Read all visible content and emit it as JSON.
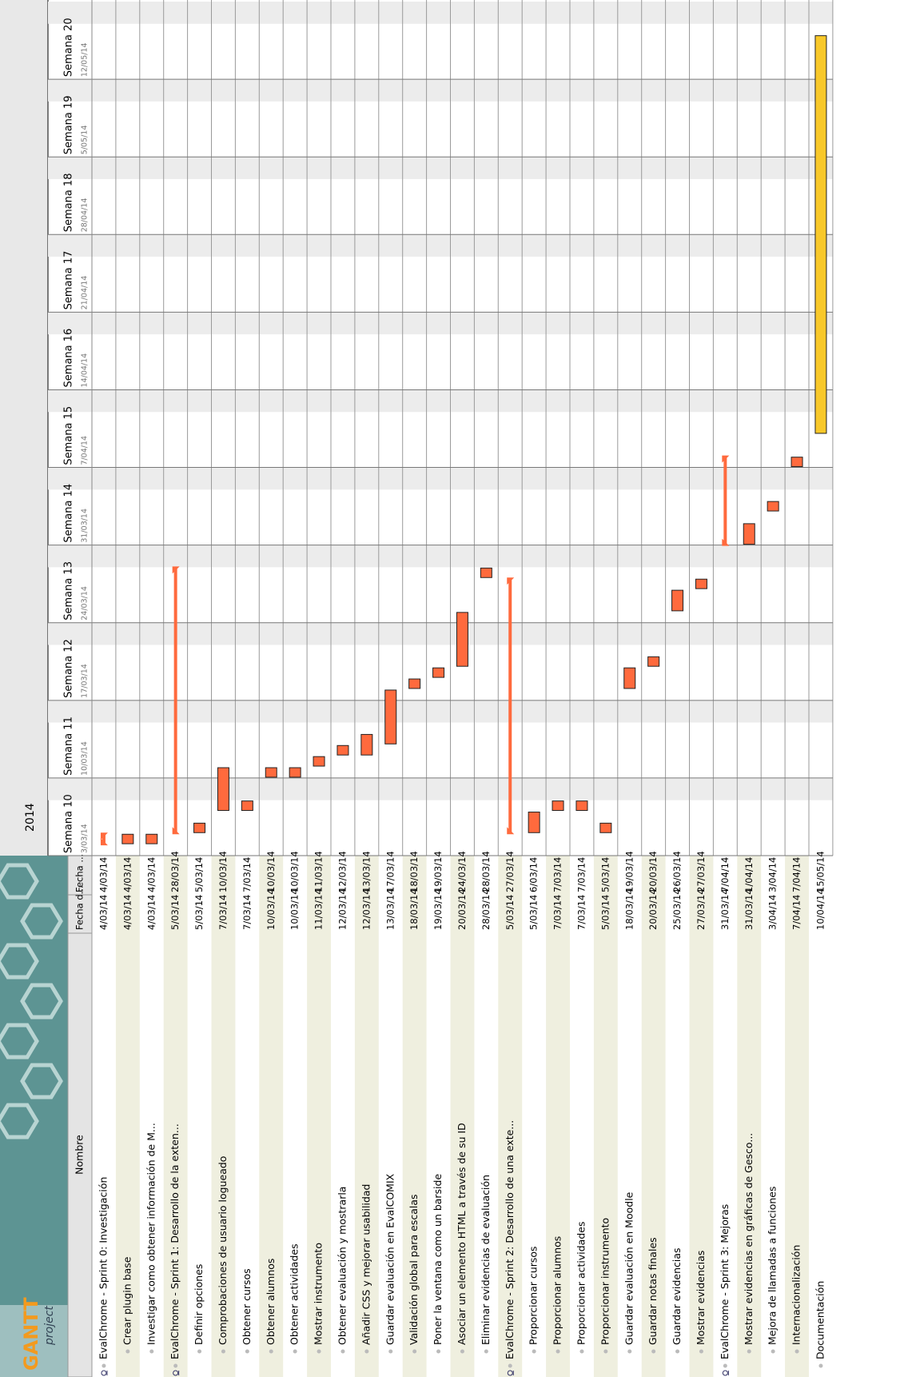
{
  "logo": {
    "title": "GANTT",
    "subtitle": "project"
  },
  "year": "2014",
  "columns": [
    "Nombre",
    "Fecha d...",
    "Fecha ..."
  ],
  "weeks": [
    {
      "name": "Semana 10",
      "date": "3/03/14"
    },
    {
      "name": "Semana 11",
      "date": "10/03/14"
    },
    {
      "name": "Semana 12",
      "date": "17/03/14"
    },
    {
      "name": "Semana 13",
      "date": "24/03/14"
    },
    {
      "name": "Semana 14",
      "date": "31/03/14"
    },
    {
      "name": "Semana 15",
      "date": "7/04/14"
    },
    {
      "name": "Semana 16",
      "date": "14/04/14"
    },
    {
      "name": "Semana 17",
      "date": "21/04/14"
    },
    {
      "name": "Semana 18",
      "date": "28/04/14"
    },
    {
      "name": "Semana 19",
      "date": "5/05/14"
    },
    {
      "name": "Semana 20",
      "date": "12/05/14"
    }
  ],
  "tasks": [
    {
      "name": "EvalChrome - Sprint 0: Investigación",
      "start": "4/03/14",
      "end": "4/03/14",
      "children": [
        {
          "name": "Crear plugin base",
          "start": "4/03/14",
          "end": "4/03/14"
        },
        {
          "name": "Investigar como obtener información de M...",
          "start": "4/03/14",
          "end": "4/03/14"
        }
      ]
    },
    {
      "name": "EvalChrome - Sprint 1: Desarrollo de la exten...",
      "start": "5/03/14",
      "end": "28/03/14",
      "children": [
        {
          "name": "Definir opciones",
          "start": "5/03/14",
          "end": "5/03/14"
        },
        {
          "name": "Comprobaciones de usuario logueado",
          "start": "7/03/14",
          "end": "10/03/14"
        },
        {
          "name": "Obtener cursos",
          "start": "7/03/14",
          "end": "7/03/14"
        },
        {
          "name": "Obtener alumnos",
          "start": "10/03/14",
          "end": "10/03/14"
        },
        {
          "name": "Obtener actividades",
          "start": "10/03/14",
          "end": "10/03/14"
        },
        {
          "name": "Mostrar instrumento",
          "start": "11/03/14",
          "end": "11/03/14"
        },
        {
          "name": "Obtener evaluación y mostrarla",
          "start": "12/03/14",
          "end": "12/03/14"
        },
        {
          "name": "Añadir CSS y mejorar usabilidad",
          "start": "12/03/14",
          "end": "13/03/14"
        },
        {
          "name": "Guardar evaluación en EvalCOMIX",
          "start": "13/03/14",
          "end": "17/03/14"
        },
        {
          "name": "Validación global para escalas",
          "start": "18/03/14",
          "end": "18/03/14"
        },
        {
          "name": "Poner la ventana como un barside",
          "start": "19/03/14",
          "end": "19/03/14"
        },
        {
          "name": "Asociar un elemento HTML a través de su ID",
          "start": "20/03/14",
          "end": "24/03/14"
        },
        {
          "name": "Eliminar evidencias de evaluación",
          "start": "28/03/14",
          "end": "28/03/14"
        }
      ]
    },
    {
      "name": "EvalChrome - Sprint 2: Desarrollo de una exte...",
      "start": "5/03/14",
      "end": "27/03/14",
      "children": [
        {
          "name": "Proporcionar cursos",
          "start": "5/03/14",
          "end": "6/03/14"
        },
        {
          "name": "Proporcionar alumnos",
          "start": "7/03/14",
          "end": "7/03/14"
        },
        {
          "name": "Proporcionar actividades",
          "start": "7/03/14",
          "end": "7/03/14"
        },
        {
          "name": "Proporcionar instrumento",
          "start": "5/03/14",
          "end": "5/03/14"
        },
        {
          "name": "Guardar evaluación en Moodle",
          "start": "18/03/14",
          "end": "19/03/14"
        },
        {
          "name": "Guardar notas finales",
          "start": "20/03/14",
          "end": "20/03/14"
        },
        {
          "name": "Guardar evidencias",
          "start": "25/03/14",
          "end": "26/03/14"
        },
        {
          "name": "Mostrar evidencias",
          "start": "27/03/14",
          "end": "27/03/14"
        }
      ]
    },
    {
      "name": "EvalChrome - Sprint 3: Mejoras",
      "start": "31/03/14",
      "end": "7/04/14",
      "children": [
        {
          "name": "Mostrar evidencias en gráficas de Gesco...",
          "start": "31/03/14",
          "end": "1/04/14"
        },
        {
          "name": "Mejora de llamadas a funciones",
          "start": "3/04/14",
          "end": "3/04/14"
        },
        {
          "name": "Internacionalización",
          "start": "7/04/14",
          "end": "7/04/14"
        }
      ]
    },
    {
      "name": "Documentación",
      "start": "10/04/14",
      "end": "15/05/14"
    }
  ]
}
